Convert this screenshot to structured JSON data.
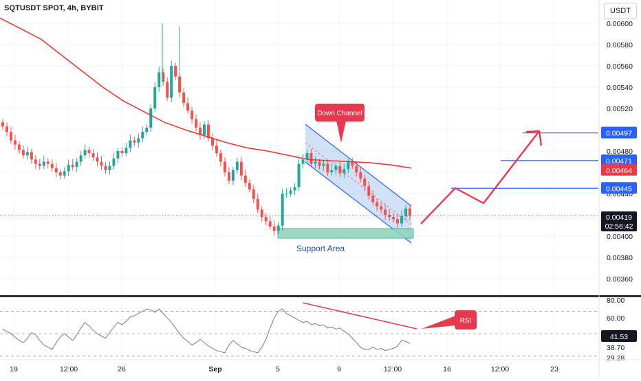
{
  "header": {
    "title": "SQTUSDT SPOT, 4h, BYBIT",
    "currency_button": "USDT"
  },
  "colors": {
    "up": "#26a69a",
    "down": "#ef5350",
    "ma": "#e53935",
    "channel": "#2962ff",
    "channel_fill": "#b3cdf2",
    "support_fill": "#8fd3b6",
    "annotation": "#e53950",
    "rsi_line": "#787b86",
    "label_blue": "#2962ff",
    "label_red": "#f23645",
    "label_dark": "#131722"
  },
  "chart_data": [
    {
      "type": "candlestick",
      "title": "SQTUSDT SPOT, 4h, BYBIT",
      "x_tick_labels": [
        "19",
        "12:00",
        "26",
        "Sep",
        "5",
        "9",
        "12:00",
        "16",
        "12:00",
        "23"
      ],
      "y_tick_labels": [
        "0.00600",
        "0.00580",
        "0.00560",
        "0.00540",
        "0.00520",
        "0.00480",
        "0.00460",
        "0.00440",
        "0.00400",
        "0.00380",
        "0.00360"
      ],
      "ylim": [
        0.00341,
        0.00608
      ],
      "series": [
        {
          "name": "price",
          "description_points_close": [
            0.00503,
            0.00498,
            0.0049,
            0.00486,
            0.00481,
            0.00476,
            0.00479,
            0.00472,
            0.00468,
            0.00466,
            0.0047,
            0.00468,
            0.00464,
            0.0046,
            0.00457,
            0.00461,
            0.00467,
            0.00465,
            0.0047,
            0.00476,
            0.00481,
            0.00478,
            0.00474,
            0.0047,
            0.00466,
            0.00462,
            0.00466,
            0.00473,
            0.0048,
            0.00478,
            0.00483,
            0.0049,
            0.00488,
            0.00492,
            0.00498,
            0.00502,
            0.0052,
            0.0054,
            0.00554,
            0.00545,
            0.0053,
            0.0056,
            0.0055,
            0.00535,
            0.00525,
            0.00518,
            0.0051,
            0.00502,
            0.00495,
            0.00505,
            0.00492,
            0.00485,
            0.00478,
            0.0047,
            0.0046,
            0.00452,
            0.00462,
            0.0047,
            0.00457,
            0.0045,
            0.00444,
            0.00435,
            0.00425,
            0.00418,
            0.00414,
            0.00409,
            0.00405,
            0.0041,
            0.0044,
            0.0044,
            0.00443,
            0.00446,
            0.00468,
            0.00472,
            0.00478,
            0.00468,
            0.0047,
            0.00466,
            0.00468,
            0.0046,
            0.00462,
            0.00466,
            0.00459,
            0.00463,
            0.0047,
            0.00466,
            0.0046,
            0.00454,
            0.00447,
            0.00438,
            0.00432,
            0.00428,
            0.00425,
            0.0042,
            0.00418,
            0.00416,
            0.00412,
            0.00419,
            0.00426,
            0.00419
          ]
        },
        {
          "name": "MA",
          "values": [
            0.00605,
            0.00595,
            0.00585,
            0.0057,
            0.00555,
            0.0054,
            0.00527,
            0.00517,
            0.00507,
            0.005,
            0.00494,
            0.00488,
            0.00483,
            0.0048,
            0.00476,
            0.00472,
            0.00471,
            0.0047,
            0.00469,
            0.00467,
            0.00464
          ]
        }
      ],
      "price_labels": {
        "resistance_3": "0.00497",
        "resistance_2": "0.00471",
        "ma_value": "0.00464",
        "resistance_1": "0.00445",
        "last_price": "0.00419",
        "countdown": "02:56:42"
      },
      "resistance_levels": [
        0.00497,
        0.00471,
        0.00445
      ],
      "annotations": {
        "channel_label": "Down Channel",
        "support_label": "Support Area",
        "projection_path": [
          0.00408,
          0.00447,
          0.00425,
          0.00497,
          0.00485
        ]
      }
    },
    {
      "type": "line",
      "title": "RSI",
      "y_tick_labels": [
        "80.00",
        "60.00",
        "38.70",
        "29.28"
      ],
      "current_value_label": "41.53",
      "ylim": [
        26,
        82
      ],
      "levels": [
        70,
        50,
        30
      ],
      "annotation_label": "RSI",
      "values": [
        54,
        52,
        50,
        47,
        44,
        42,
        46,
        51,
        49,
        44,
        40,
        38,
        36,
        42,
        47,
        50,
        47,
        44,
        49,
        55,
        60,
        57,
        53,
        50,
        48,
        46,
        51,
        56,
        60,
        58,
        61,
        65,
        66,
        68,
        70,
        72,
        71,
        69,
        72,
        68,
        64,
        60,
        55,
        50,
        46,
        43,
        40,
        42,
        45,
        42,
        39,
        37,
        35,
        34,
        33,
        40,
        44,
        41,
        38,
        37,
        35,
        34,
        33,
        38,
        45,
        55,
        64,
        70,
        72,
        68,
        66,
        64,
        62,
        60,
        61,
        58,
        59,
        57,
        58,
        55,
        56,
        54,
        55,
        52,
        50,
        46,
        42,
        38,
        36,
        36,
        38,
        36,
        37,
        35,
        36,
        37,
        39,
        44,
        43,
        41.5
      ]
    }
  ]
}
